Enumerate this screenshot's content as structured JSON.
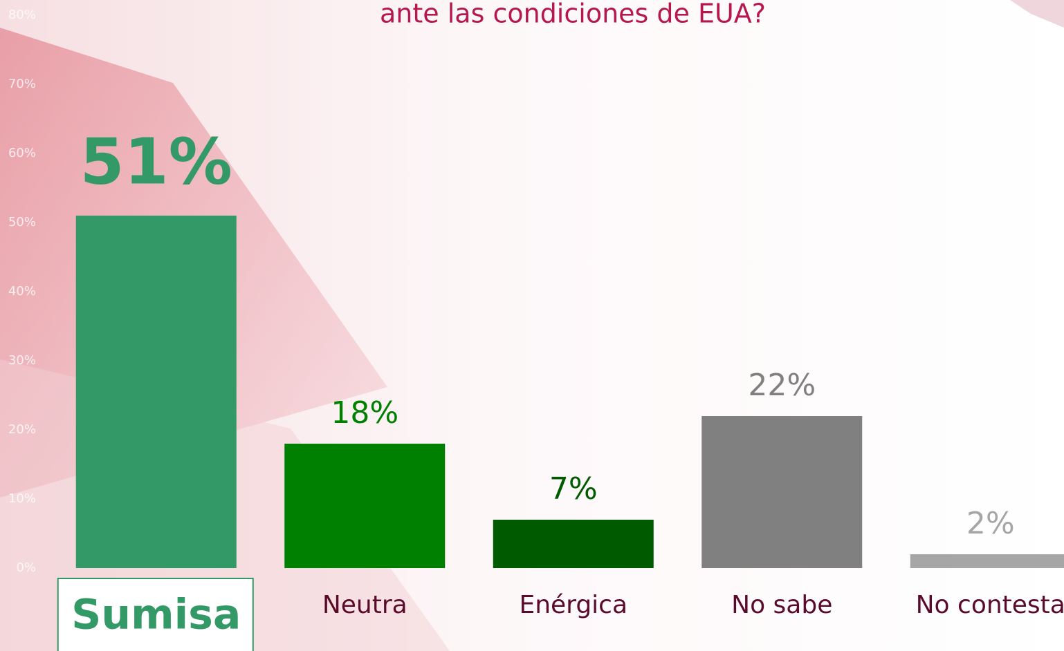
{
  "chart_data": {
    "type": "bar",
    "title": "ante las condiciones de EUA?",
    "categories": [
      "Sumisa",
      "Neutra",
      "Enérgica",
      "No sabe",
      "No contesta"
    ],
    "values": [
      51,
      18,
      7,
      22,
      2
    ],
    "value_labels": [
      "51%",
      "18%",
      "7%",
      "22%",
      "2%"
    ],
    "colors": [
      "#339966",
      "#008000",
      "#005a00",
      "#808080",
      "#a6a6a6"
    ],
    "category_label_colors": [
      "#339966",
      "#5a0a2a",
      "#5a0a2a",
      "#5a0a2a",
      "#5a0a2a"
    ],
    "highlight_index": 0,
    "ylim": [
      0,
      80
    ],
    "yticks": [
      {
        "value": 0,
        "label": "0%"
      },
      {
        "value": 10,
        "label": "10%"
      },
      {
        "value": 20,
        "label": "20%"
      },
      {
        "value": 30,
        "label": "30%"
      },
      {
        "value": 40,
        "label": "40%"
      },
      {
        "value": 50,
        "label": "50%"
      },
      {
        "value": 60,
        "label": "60%"
      },
      {
        "value": 70,
        "label": "70%"
      },
      {
        "value": 80,
        "label": "80%"
      }
    ],
    "grid": false
  }
}
